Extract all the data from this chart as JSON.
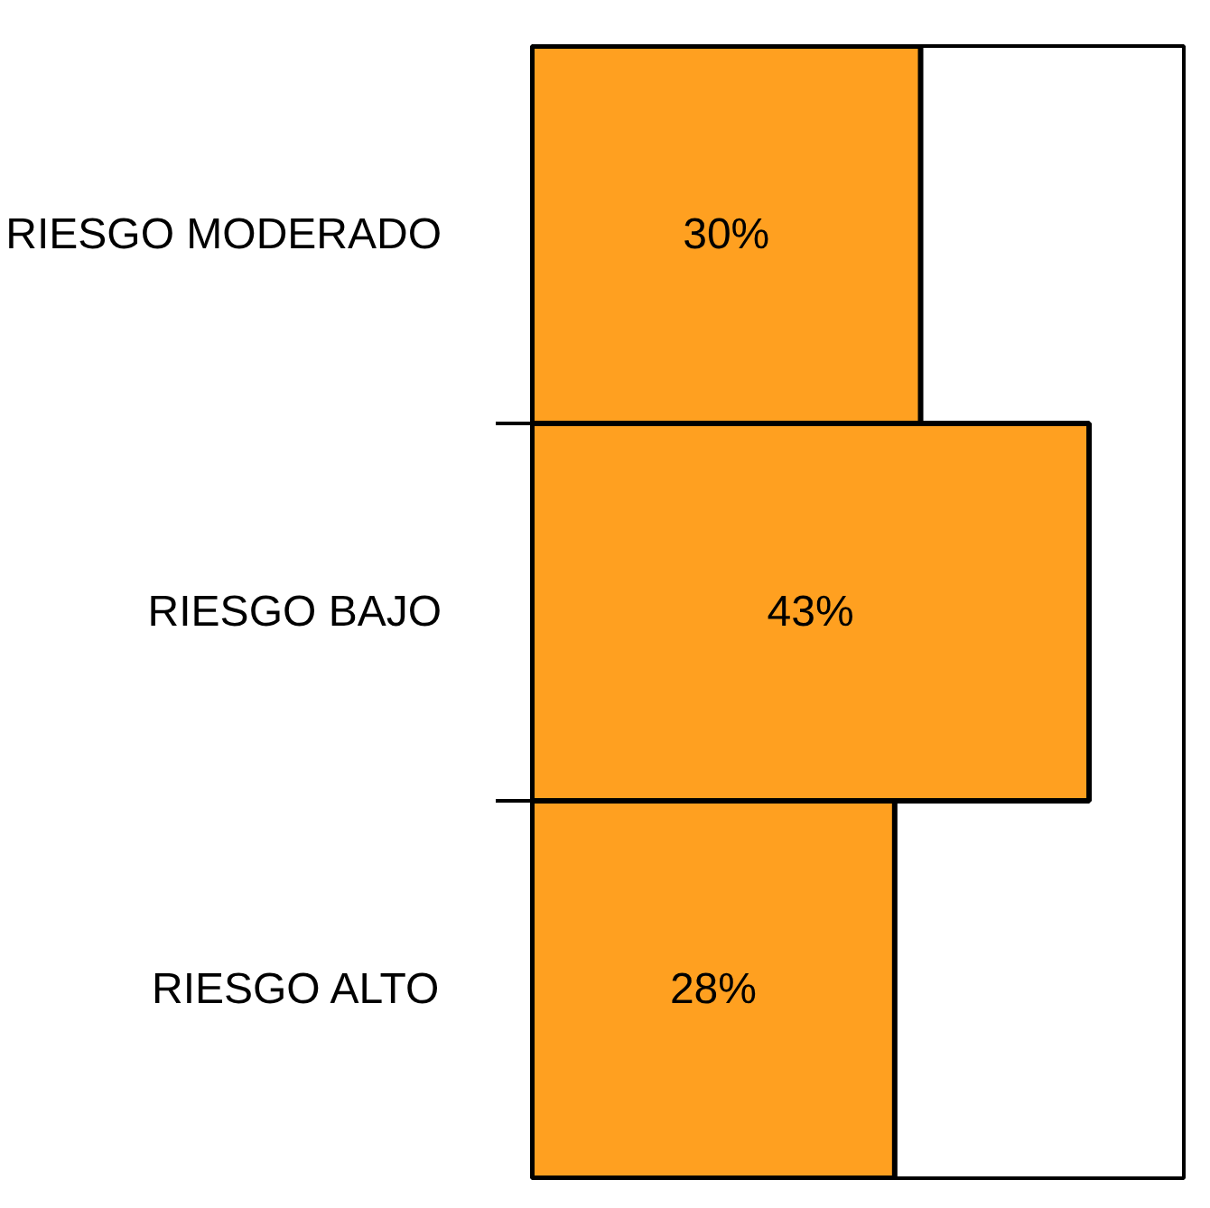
{
  "chart_data": {
    "type": "bar",
    "orientation": "horizontal",
    "categories": [
      "RIESGO MODERADO",
      "RIESGO BAJO",
      "RIESGO ALTO"
    ],
    "values": [
      30,
      43,
      28
    ],
    "value_labels": [
      "30%",
      "43%",
      "28%"
    ],
    "color": "#ffa020",
    "tick_labels": "y",
    "grid": false
  }
}
